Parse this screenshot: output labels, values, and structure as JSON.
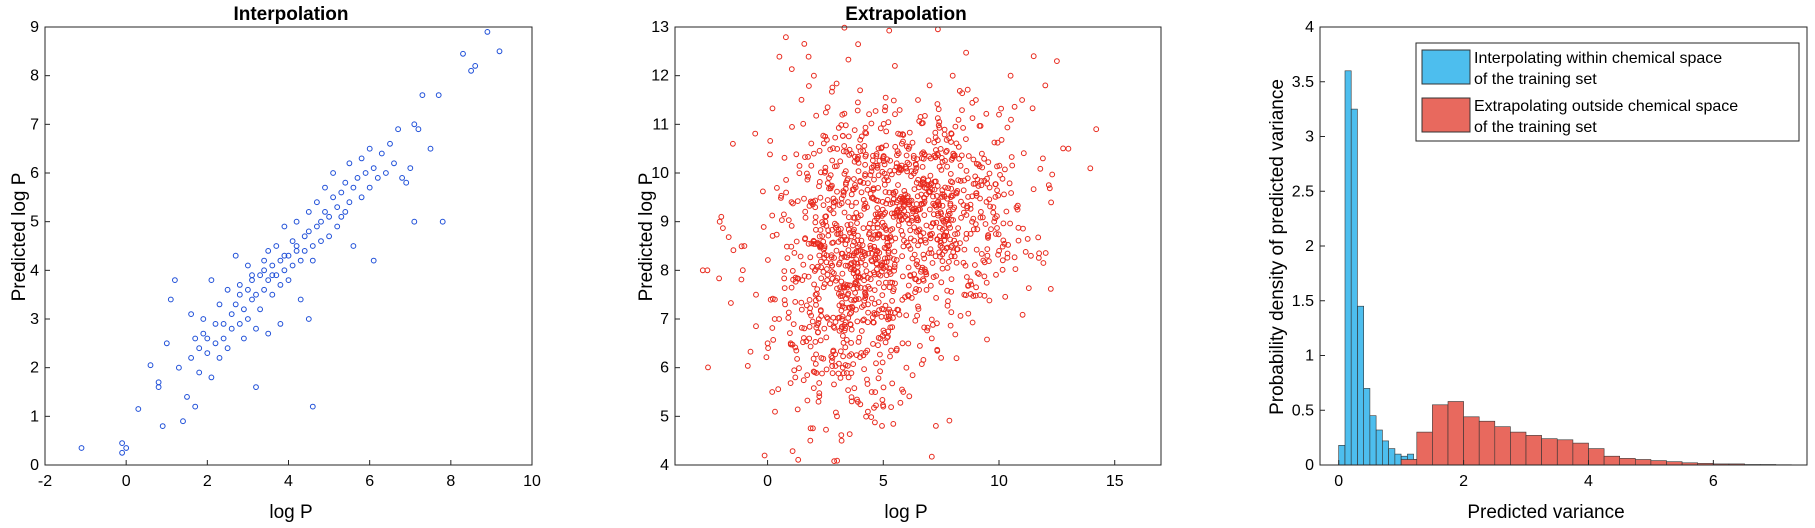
{
  "colors": {
    "interp_points": "#1f4fd8",
    "extrap_points": "#e8281c",
    "hist_interp": "#4dbeee",
    "hist_extrap": "#e8695e",
    "axis": "#262626"
  },
  "chart_data": [
    {
      "type": "scatter",
      "title": "Interpolation",
      "xlabel": "log P",
      "ylabel": "Predicted log P",
      "xlim": [
        -2,
        10
      ],
      "ylim": [
        0,
        9
      ],
      "xticks": [
        -2,
        0,
        2,
        4,
        6,
        8,
        10
      ],
      "yticks": [
        0,
        1,
        2,
        3,
        4,
        5,
        6,
        7,
        8,
        9
      ],
      "grid": false,
      "marker": "open-circle",
      "series": [
        {
          "points": [
            [
              -1.1,
              0.35
            ],
            [
              -0.1,
              0.25
            ],
            [
              -0.1,
              0.45
            ],
            [
              0.0,
              0.35
            ],
            [
              0.3,
              1.15
            ],
            [
              0.6,
              2.05
            ],
            [
              0.8,
              1.6
            ],
            [
              0.8,
              1.7
            ],
            [
              0.9,
              0.8
            ],
            [
              1.0,
              2.5
            ],
            [
              1.1,
              3.4
            ],
            [
              1.2,
              3.8
            ],
            [
              1.3,
              2.0
            ],
            [
              1.4,
              0.9
            ],
            [
              1.5,
              1.4
            ],
            [
              1.6,
              2.2
            ],
            [
              1.6,
              3.1
            ],
            [
              1.7,
              2.6
            ],
            [
              1.7,
              1.2
            ],
            [
              1.8,
              1.9
            ],
            [
              1.8,
              2.4
            ],
            [
              1.9,
              2.7
            ],
            [
              1.9,
              3.0
            ],
            [
              2.0,
              2.3
            ],
            [
              2.0,
              2.6
            ],
            [
              2.1,
              1.8
            ],
            [
              2.1,
              3.8
            ],
            [
              2.2,
              2.5
            ],
            [
              2.2,
              2.9
            ],
            [
              2.3,
              2.2
            ],
            [
              2.3,
              3.3
            ],
            [
              2.4,
              2.6
            ],
            [
              2.4,
              2.9
            ],
            [
              2.5,
              3.6
            ],
            [
              2.5,
              2.4
            ],
            [
              2.6,
              3.1
            ],
            [
              2.6,
              2.8
            ],
            [
              2.7,
              3.3
            ],
            [
              2.7,
              4.3
            ],
            [
              2.8,
              2.9
            ],
            [
              2.8,
              3.5
            ],
            [
              2.9,
              3.2
            ],
            [
              2.9,
              2.6
            ],
            [
              3.0,
              3.6
            ],
            [
              3.0,
              3.0
            ],
            [
              3.0,
              4.1
            ],
            [
              3.1,
              3.4
            ],
            [
              3.1,
              3.8
            ],
            [
              3.2,
              2.8
            ],
            [
              3.2,
              3.5
            ],
            [
              3.2,
              1.6
            ],
            [
              3.3,
              3.9
            ],
            [
              3.3,
              3.2
            ],
            [
              3.4,
              4.0
            ],
            [
              3.4,
              3.6
            ],
            [
              3.5,
              3.8
            ],
            [
              3.5,
              4.4
            ],
            [
              3.5,
              2.7
            ],
            [
              3.6,
              3.5
            ],
            [
              3.6,
              4.1
            ],
            [
              3.7,
              3.9
            ],
            [
              3.7,
              4.5
            ],
            [
              3.8,
              4.2
            ],
            [
              3.8,
              3.7
            ],
            [
              3.8,
              2.9
            ],
            [
              3.9,
              4.0
            ],
            [
              3.9,
              4.9
            ],
            [
              4.0,
              4.3
            ],
            [
              4.0,
              3.8
            ],
            [
              4.1,
              4.6
            ],
            [
              4.1,
              4.1
            ],
            [
              4.2,
              4.5
            ],
            [
              4.2,
              5.0
            ],
            [
              4.3,
              4.2
            ],
            [
              4.3,
              3.4
            ],
            [
              4.4,
              4.7
            ],
            [
              4.4,
              4.4
            ],
            [
              4.5,
              4.8
            ],
            [
              4.5,
              5.2
            ],
            [
              4.5,
              3.0
            ],
            [
              4.6,
              4.5
            ],
            [
              4.6,
              1.2
            ],
            [
              4.7,
              4.9
            ],
            [
              4.7,
              5.4
            ],
            [
              4.8,
              5.0
            ],
            [
              4.8,
              4.6
            ],
            [
              4.9,
              5.2
            ],
            [
              4.9,
              5.7
            ],
            [
              5.0,
              5.1
            ],
            [
              5.0,
              4.7
            ],
            [
              5.1,
              5.5
            ],
            [
              5.1,
              6.0
            ],
            [
              5.2,
              5.3
            ],
            [
              5.2,
              4.9
            ],
            [
              5.3,
              5.6
            ],
            [
              5.3,
              5.1
            ],
            [
              5.4,
              5.8
            ],
            [
              5.5,
              5.4
            ],
            [
              5.5,
              6.2
            ],
            [
              5.6,
              5.7
            ],
            [
              5.6,
              4.5
            ],
            [
              5.7,
              5.9
            ],
            [
              5.8,
              5.5
            ],
            [
              5.8,
              6.3
            ],
            [
              5.9,
              6.0
            ],
            [
              6.0,
              5.7
            ],
            [
              6.0,
              6.5
            ],
            [
              6.1,
              6.1
            ],
            [
              6.1,
              4.2
            ],
            [
              6.2,
              5.9
            ],
            [
              6.3,
              6.4
            ],
            [
              6.4,
              6.0
            ],
            [
              6.5,
              6.6
            ],
            [
              6.6,
              6.2
            ],
            [
              6.7,
              6.9
            ],
            [
              6.8,
              5.9
            ],
            [
              6.9,
              5.8
            ],
            [
              7.0,
              6.1
            ],
            [
              7.1,
              7.0
            ],
            [
              7.1,
              5.0
            ],
            [
              7.2,
              6.9
            ],
            [
              7.3,
              7.6
            ],
            [
              7.5,
              6.5
            ],
            [
              7.7,
              7.6
            ],
            [
              7.8,
              5.0
            ],
            [
              8.3,
              8.45
            ],
            [
              8.5,
              8.1
            ],
            [
              8.6,
              8.2
            ],
            [
              8.9,
              8.9
            ],
            [
              9.2,
              8.5
            ],
            [
              3.4,
              4.2
            ],
            [
              3.6,
              3.9
            ],
            [
              3.9,
              4.3
            ],
            [
              4.2,
              4.4
            ],
            [
              2.8,
              3.7
            ],
            [
              3.1,
              3.9
            ],
            [
              4.6,
              4.2
            ],
            [
              5.4,
              5.2
            ]
          ]
        }
      ]
    },
    {
      "type": "scatter",
      "title": "Extrapolation",
      "xlabel": "log P",
      "ylabel": "Predicted log P",
      "xlim": [
        -4,
        17
      ],
      "ylim": [
        4,
        13
      ],
      "xticks": [
        0,
        5,
        10,
        15
      ],
      "yticks": [
        4,
        5,
        6,
        7,
        8,
        9,
        10,
        11,
        12,
        13
      ],
      "grid": false,
      "marker": "open-circle",
      "series": [
        {
          "points": [
            [
              -2.8,
              8.0
            ],
            [
              -2.6,
              8.0
            ],
            [
              -2.0,
              9.1
            ],
            [
              -1.5,
              10.6
            ],
            [
              -1.0,
              8.5
            ],
            [
              -0.5,
              7.5
            ],
            [
              0.0,
              6.5
            ],
            [
              0.2,
              5.5
            ],
            [
              0.5,
              7.0
            ],
            [
              0.8,
              9.6
            ],
            [
              1.0,
              6.5
            ],
            [
              1.2,
              5.8
            ],
            [
              1.5,
              7.8
            ],
            [
              1.8,
              6.6
            ],
            [
              2.0,
              12.0
            ],
            [
              2.2,
              5.3
            ],
            [
              2.5,
              9.0
            ],
            [
              2.8,
              6.2
            ],
            [
              3.0,
              5.0
            ],
            [
              3.2,
              4.5
            ],
            [
              3.5,
              5.8
            ],
            [
              4.0,
              11.7
            ],
            [
              4.5,
              5.5
            ],
            [
              5.0,
              5.2
            ],
            [
              5.5,
              12.2
            ],
            [
              6.0,
              6.0
            ],
            [
              6.5,
              11.5
            ],
            [
              7.0,
              11.8
            ],
            [
              7.5,
              6.2
            ],
            [
              8.0,
              12.0
            ],
            [
              8.5,
              7.5
            ],
            [
              9.0,
              11.5
            ],
            [
              9.5,
              8.3
            ],
            [
              10.0,
              11.2
            ],
            [
              10.5,
              12.0
            ],
            [
              11.0,
              11.5
            ],
            [
              11.5,
              12.4
            ],
            [
              12.0,
              11.8
            ],
            [
              12.5,
              12.3
            ],
            [
              13.0,
              10.5
            ],
            [
              14.2,
              10.9
            ]
          ],
          "clusters": [
            {
              "cx": 3.5,
              "cy": 7.5,
              "sx": 1.6,
              "sy": 1.3,
              "n": 450
            },
            {
              "cx": 7.0,
              "cy": 9.3,
              "sx": 2.2,
              "sy": 1.0,
              "n": 550
            },
            {
              "cx": 4.5,
              "cy": 8.8,
              "sx": 2.5,
              "sy": 1.6,
              "n": 400
            }
          ]
        }
      ]
    },
    {
      "type": "bar",
      "title": "",
      "xlabel": "Predicted variance",
      "ylabel": "Probability density of predicted variance",
      "xlim": [
        -0.3,
        7.5
      ],
      "ylim": [
        0,
        4
      ],
      "xticks": [
        0,
        2,
        4,
        6
      ],
      "yticks": [
        0,
        0.5,
        1,
        1.5,
        2,
        2.5,
        3,
        3.5,
        4
      ],
      "legend_placement": "top-right",
      "series": [
        {
          "name": "Interpolating within chemical space of the training set",
          "name_lines": [
            "Interpolating within chemical space",
            "of the training set"
          ],
          "bin_width": 0.1,
          "bin_starts": [
            0.0,
            0.1,
            0.2,
            0.3,
            0.4,
            0.5,
            0.6,
            0.7,
            0.8,
            0.9,
            1.0,
            1.1,
            1.2
          ],
          "values": [
            0.18,
            3.6,
            3.25,
            1.45,
            0.7,
            0.45,
            0.32,
            0.22,
            0.15,
            0.1,
            0.08,
            0.1,
            0.05
          ]
        },
        {
          "name": "Extrapolating outside chemical space of the training set",
          "name_lines": [
            "Extrapolating outside chemical space",
            "of the training set"
          ],
          "bin_width": 0.25,
          "bin_starts": [
            1.0,
            1.25,
            1.5,
            1.75,
            2.0,
            2.25,
            2.5,
            2.75,
            3.0,
            3.25,
            3.5,
            3.75,
            4.0,
            4.25,
            4.5,
            4.75,
            5.0,
            5.25,
            5.5,
            5.75,
            6.0,
            6.25,
            6.5,
            6.75,
            7.0
          ],
          "values": [
            0.05,
            0.3,
            0.55,
            0.58,
            0.44,
            0.4,
            0.35,
            0.3,
            0.27,
            0.24,
            0.23,
            0.2,
            0.15,
            0.08,
            0.06,
            0.05,
            0.04,
            0.03,
            0.02,
            0.015,
            0.01,
            0.01,
            0.005,
            0.005,
            0.003
          ]
        }
      ]
    }
  ]
}
